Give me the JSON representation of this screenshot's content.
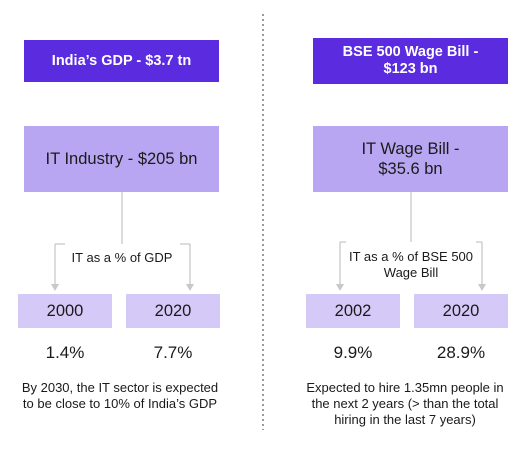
{
  "left": {
    "top_box": "India’s GDP - $3.7 tn",
    "mid_box": "IT Industry - $205 bn",
    "branch_label": "IT as a % of GDP",
    "years": [
      "2000",
      "2020"
    ],
    "values": [
      "1.4%",
      "7.7%"
    ],
    "note_line1": "By 2030, the IT sector is expected",
    "note_line2": "to be close  to 10% of India’s GDP"
  },
  "right": {
    "top_box_line1": "BSE 500 Wage Bill -",
    "top_box_line2": "$123 bn",
    "mid_box_line1": "IT Wage Bill -",
    "mid_box_line2": "$35.6 bn",
    "branch_label_line1": "IT as a % of BSE 500",
    "branch_label_line2": "Wage Bill",
    "years": [
      "2002",
      "2020"
    ],
    "values": [
      "9.9%",
      "28.9%"
    ],
    "note_line1": "Expected to hire 1.35mn people in",
    "note_line2": "the next 2 years (> than the total",
    "note_line3": "hiring in the last 7 years)"
  },
  "colors": {
    "dark_purple": "#5b2be0",
    "mid_purple": "#b8a6f2",
    "light_purple": "#d4c9f7",
    "connector": "#c8c8c8",
    "divider": "#7a7a7a"
  }
}
